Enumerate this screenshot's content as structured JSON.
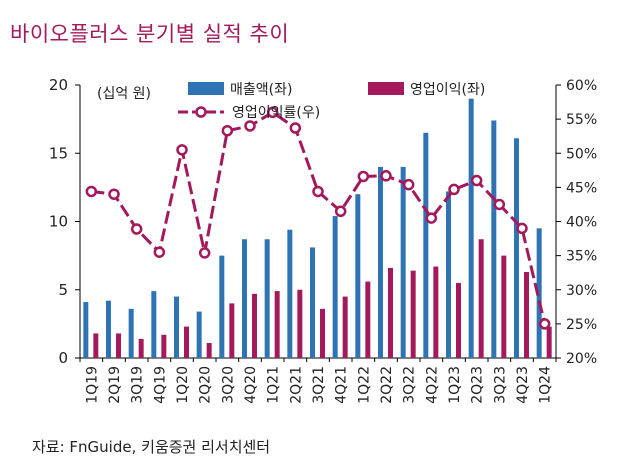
{
  "title": "바이오플러스 분기별 실적 추이",
  "source": "자료: FnGuide, 키움증권 리서치센터",
  "colors": {
    "title": "#a3195b",
    "revenue": "#2e74b5",
    "op_profit": "#a3195b",
    "op_margin": "#a3195b"
  },
  "chart_data": {
    "type": "bar",
    "title": "바이오플러스 분기별 실적 추이",
    "unit_label": "(십억 원)",
    "categories": [
      "1Q19",
      "2Q19",
      "3Q19",
      "4Q19",
      "1Q20",
      "2Q20",
      "3Q20",
      "4Q20",
      "1Q21",
      "2Q21",
      "3Q21",
      "4Q21",
      "1Q22",
      "2Q22",
      "3Q22",
      "4Q22",
      "1Q23",
      "2Q23",
      "3Q23",
      "4Q23",
      "1Q24"
    ],
    "y_left": {
      "min": 0,
      "max": 20,
      "ticks": [
        0,
        5,
        10,
        15,
        20
      ],
      "tick_labels": [
        "0",
        "5",
        "10",
        "15",
        "20"
      ]
    },
    "y_right": {
      "min": 20,
      "max": 60,
      "ticks": [
        20,
        25,
        30,
        35,
        40,
        45,
        50,
        55,
        60
      ],
      "tick_labels": [
        "20%",
        "25%",
        "30%",
        "35%",
        "40%",
        "45%",
        "50%",
        "55%",
        "60%"
      ]
    },
    "series": [
      {
        "name": "매출액(좌)",
        "kind": "bar",
        "axis": "left",
        "values": [
          4.1,
          4.2,
          3.6,
          4.9,
          4.5,
          3.4,
          7.5,
          8.7,
          8.7,
          9.4,
          8.1,
          10.4,
          12.0,
          14.0,
          14.0,
          16.5,
          12.2,
          19.0,
          17.4,
          16.1,
          9.5
        ]
      },
      {
        "name": "영업이익(좌)",
        "kind": "bar",
        "axis": "left",
        "values": [
          1.8,
          1.8,
          1.4,
          1.7,
          2.3,
          1.1,
          4.0,
          4.7,
          4.9,
          5.0,
          3.6,
          4.5,
          5.6,
          6.6,
          6.4,
          6.7,
          5.5,
          8.7,
          7.5,
          6.3,
          2.3
        ]
      },
      {
        "name": "영업이익률(우)",
        "kind": "line",
        "axis": "right",
        "values": [
          44.4,
          44.0,
          38.9,
          35.5,
          50.5,
          35.4,
          53.3,
          54.0,
          56.0,
          53.7,
          44.4,
          41.5,
          46.6,
          46.7,
          45.4,
          40.5,
          44.7,
          46.0,
          42.5,
          39.0,
          25.0
        ]
      }
    ],
    "legend_position": "top"
  }
}
